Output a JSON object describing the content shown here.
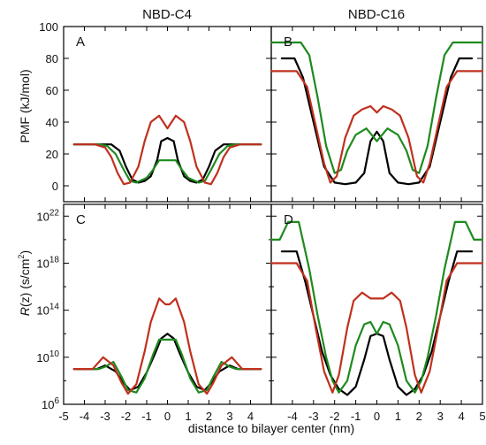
{
  "figure": {
    "col_titles": [
      "NBD-C4",
      "NBD-C16"
    ],
    "xlabel": "distance to bilayer center (nm)",
    "ylabel_top": "PMF (kJ/mol)",
    "ylabel_bottom_italic": "R",
    "ylabel_bottom_rest": "(z) (s/cm",
    "ylabel_bottom_sup": "2",
    "ylabel_bottom_close": ")"
  },
  "chart_data": [
    {
      "panel": "A",
      "type": "line",
      "title": "NBD-C4",
      "xlabel": "",
      "ylabel": "PMF (kJ/mol)",
      "xlim": [
        -5,
        5
      ],
      "ylim": [
        -10,
        100
      ],
      "yticks": [
        0,
        20,
        40,
        60,
        80,
        100
      ],
      "series": [
        {
          "color": "#000000",
          "x": [
            -4.5,
            -3.3,
            -2.7,
            -2.3,
            -2.0,
            -1.7,
            -1.4,
            -1.1,
            -0.8,
            -0.5,
            -0.3,
            0,
            0.3,
            0.5,
            0.8,
            1.1,
            1.4,
            1.7,
            2.0,
            2.3,
            2.7,
            3.3,
            4.5
          ],
          "y": [
            26,
            26,
            26,
            22,
            12,
            4,
            2,
            3,
            6,
            16,
            28,
            30,
            28,
            16,
            6,
            3,
            2,
            4,
            12,
            22,
            26,
            26,
            26
          ]
        },
        {
          "color": "#1e8a1e",
          "x": [
            -4.5,
            -3.3,
            -2.9,
            -2.5,
            -2.1,
            -1.8,
            -1.5,
            -1.0,
            -0.7,
            -0.4,
            0,
            0.4,
            0.7,
            1.0,
            1.5,
            1.8,
            2.1,
            2.5,
            2.9,
            3.3,
            4.5
          ],
          "y": [
            26,
            26,
            25,
            20,
            10,
            3,
            2,
            5,
            10,
            16,
            16,
            16,
            10,
            5,
            2,
            3,
            10,
            20,
            25,
            26,
            26
          ]
        },
        {
          "color": "#c0301e",
          "x": [
            -4.5,
            -3.5,
            -3.0,
            -2.7,
            -2.4,
            -2.1,
            -1.8,
            -1.4,
            -1.1,
            -0.8,
            -0.4,
            -0.2,
            0,
            0.2,
            0.4,
            0.8,
            1.1,
            1.4,
            1.8,
            2.1,
            2.4,
            2.7,
            3.0,
            3.5,
            4.5
          ],
          "y": [
            26,
            26,
            24,
            18,
            8,
            1,
            2,
            12,
            28,
            40,
            44,
            40,
            36,
            40,
            44,
            40,
            28,
            12,
            2,
            1,
            8,
            18,
            24,
            26,
            26
          ]
        }
      ]
    },
    {
      "panel": "B",
      "type": "line",
      "title": "NBD-C16",
      "xlabel": "",
      "ylabel": "",
      "xlim": [
        -5,
        5
      ],
      "ylim": [
        -10,
        100
      ],
      "series": [
        {
          "color": "#000000",
          "x": [
            -4.5,
            -3.9,
            -3.5,
            -3.0,
            -2.5,
            -2.0,
            -1.5,
            -1.0,
            -0.6,
            -0.3,
            0,
            0.3,
            0.6,
            1.0,
            1.5,
            2.0,
            2.5,
            3.0,
            3.5,
            3.9,
            4.5
          ],
          "y": [
            80,
            80,
            68,
            40,
            12,
            2,
            1,
            2,
            8,
            28,
            34,
            28,
            8,
            2,
            1,
            2,
            12,
            40,
            68,
            80,
            80
          ]
        },
        {
          "color": "#1e8a1e",
          "x": [
            -5,
            -3.6,
            -3.2,
            -2.8,
            -2.4,
            -2.0,
            -1.7,
            -1.4,
            -1.0,
            -0.5,
            0,
            0.5,
            1.0,
            1.4,
            1.7,
            2.0,
            2.4,
            2.8,
            3.2,
            3.6,
            5
          ],
          "y": [
            90,
            90,
            82,
            55,
            25,
            8,
            10,
            22,
            32,
            36,
            28,
            36,
            32,
            22,
            10,
            8,
            25,
            55,
            82,
            90,
            90
          ]
        },
        {
          "color": "#c0301e",
          "x": [
            -5,
            -3.8,
            -3.3,
            -2.9,
            -2.5,
            -2.2,
            -1.9,
            -1.5,
            -1.1,
            -0.7,
            -0.3,
            0,
            0.3,
            0.7,
            1.1,
            1.5,
            1.9,
            2.2,
            2.5,
            2.9,
            3.3,
            3.8,
            5
          ],
          "y": [
            72,
            72,
            62,
            38,
            14,
            2,
            6,
            30,
            44,
            48,
            50,
            46,
            50,
            48,
            44,
            30,
            6,
            2,
            14,
            38,
            62,
            72,
            72
          ]
        }
      ]
    },
    {
      "panel": "C",
      "type": "line",
      "title": "",
      "xlabel": "distance to bilayer center (nm)",
      "ylabel": "R(z) (s/cm2)",
      "xlim": [
        -5,
        5
      ],
      "yscale": "log",
      "ylim": [
        1000000.0,
        1e+23
      ],
      "xticks": [
        -5,
        -4,
        -3,
        -2,
        -1,
        0,
        1,
        2,
        3,
        4
      ],
      "yticks": [
        "10^6",
        "10^10",
        "10^14",
        "10^18",
        "10^22"
      ],
      "series": [
        {
          "color": "#000000",
          "x": [
            -4.5,
            -3.4,
            -3.0,
            -2.5,
            -2.1,
            -1.8,
            -1.4,
            -1.0,
            -0.6,
            -0.3,
            0,
            0.3,
            0.6,
            1.0,
            1.4,
            1.8,
            2.1,
            2.5,
            3.0,
            3.4,
            4.5
          ],
          "logy": [
            9,
            9,
            9.3,
            8.8,
            7.8,
            7.2,
            7.5,
            8.7,
            10.3,
            11.6,
            12,
            11.6,
            10.3,
            8.7,
            7.5,
            7.2,
            7.8,
            8.8,
            9.3,
            9,
            9
          ]
        },
        {
          "color": "#1e8a1e",
          "x": [
            -4.5,
            -3.3,
            -3.0,
            -2.6,
            -2.2,
            -1.9,
            -1.5,
            -1.1,
            -0.7,
            -0.4,
            0,
            0.4,
            0.7,
            1.1,
            1.5,
            1.9,
            2.2,
            2.6,
            3.0,
            3.3,
            4.5
          ],
          "logy": [
            9,
            9,
            9.2,
            9.6,
            8.3,
            7.2,
            7.0,
            8.2,
            10.2,
            11.5,
            11.5,
            11.5,
            10.2,
            8.2,
            7.0,
            7.2,
            8.3,
            9.6,
            9.2,
            9,
            9
          ]
        },
        {
          "color": "#c0301e",
          "x": [
            -4.5,
            -3.6,
            -3.1,
            -2.6,
            -2.2,
            -1.9,
            -1.5,
            -1.1,
            -0.8,
            -0.4,
            -0.1,
            0.1,
            0.4,
            0.8,
            1.1,
            1.5,
            1.9,
            2.2,
            2.6,
            3.1,
            3.6,
            4.5
          ],
          "logy": [
            9,
            9,
            10,
            9.3,
            7.8,
            6.9,
            7.7,
            10.5,
            13,
            15,
            14.5,
            14.5,
            15,
            13,
            10.5,
            7.7,
            6.9,
            7.8,
            9.3,
            10,
            9,
            9
          ]
        }
      ]
    },
    {
      "panel": "D",
      "type": "line",
      "title": "",
      "xlabel": "",
      "ylabel": "",
      "xlim": [
        -5,
        5
      ],
      "yscale": "log",
      "ylim": [
        1000000.0,
        1e+23
      ],
      "xticks": [
        -4,
        -3,
        -2,
        -1,
        0,
        1,
        2,
        3,
        4,
        5
      ],
      "series": [
        {
          "color": "#000000",
          "x": [
            -4.5,
            -3.8,
            -3.4,
            -3.0,
            -2.6,
            -2.2,
            -1.8,
            -1.4,
            -1.0,
            -0.6,
            -0.3,
            0,
            0.3,
            0.6,
            1.0,
            1.4,
            1.8,
            2.2,
            2.6,
            3.0,
            3.4,
            3.8,
            4.5
          ],
          "logy": [
            19,
            19,
            16.5,
            13.5,
            10.5,
            8.5,
            7.3,
            6.8,
            7.5,
            9.8,
            11.8,
            12,
            11.8,
            9.8,
            7.5,
            6.8,
            7.3,
            8.5,
            10.5,
            13.5,
            16.5,
            19,
            19
          ]
        },
        {
          "color": "#1e8a1e",
          "x": [
            -5,
            -4.6,
            -4.2,
            -3.7,
            -3.2,
            -2.8,
            -2.4,
            -2.1,
            -1.8,
            -1.4,
            -1.0,
            -0.6,
            -0.3,
            0,
            0.3,
            0.6,
            1.0,
            1.4,
            1.8,
            2.1,
            2.4,
            2.8,
            3.2,
            3.7,
            4.2,
            4.6,
            5
          ],
          "logy": [
            20,
            20,
            21.5,
            21.5,
            17.5,
            13.5,
            10,
            8,
            7,
            8,
            11,
            12.8,
            13,
            12,
            13,
            12.8,
            11,
            8,
            7,
            8,
            10,
            13.5,
            17.5,
            21.5,
            21.5,
            20,
            20
          ]
        },
        {
          "color": "#c0301e",
          "x": [
            -5,
            -3.8,
            -3.3,
            -2.9,
            -2.5,
            -2.1,
            -1.8,
            -1.4,
            -1.1,
            -0.7,
            -0.3,
            0,
            0.3,
            0.7,
            1.1,
            1.4,
            1.8,
            2.1,
            2.5,
            2.9,
            3.3,
            3.8,
            5
          ],
          "logy": [
            18,
            18,
            16.5,
            12.5,
            8.8,
            7,
            8.5,
            12.5,
            14.8,
            15.5,
            15,
            15,
            15,
            15.5,
            14.8,
            12.5,
            8.5,
            7,
            8.8,
            12.5,
            16.5,
            18,
            18
          ]
        }
      ]
    }
  ]
}
